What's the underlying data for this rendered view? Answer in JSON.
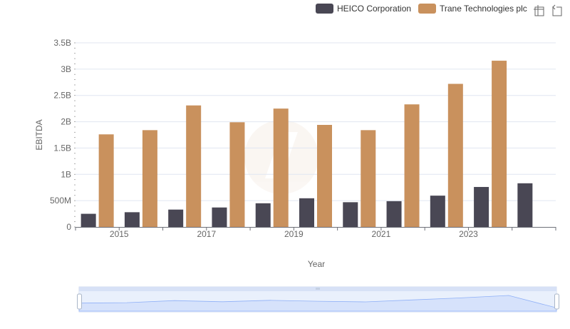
{
  "toolbar": {
    "icons": [
      "zoom-area-icon",
      "restore-icon"
    ]
  },
  "colors": {
    "heico": "#494754",
    "trane": "#c9915d",
    "grid": "#e0e6f1",
    "axis": "#6e7079",
    "zoom_fill": "#d6e2fb",
    "zoom_line": "#8fb0f7"
  },
  "chart_data": {
    "type": "bar",
    "title": "",
    "xlabel": "Year",
    "ylabel": "EBITDA",
    "categories": [
      "2014",
      "2015",
      "2016",
      "2017",
      "2018",
      "2019",
      "2020",
      "2021",
      "2022",
      "2023",
      "2024"
    ],
    "x_tick_labels": [
      "2015",
      "2017",
      "2019",
      "2021",
      "2023"
    ],
    "y_ticks": [
      {
        "value": 0,
        "label": "0"
      },
      {
        "value": 500000000,
        "label": "500M"
      },
      {
        "value": 1000000000,
        "label": "1B"
      },
      {
        "value": 1500000000,
        "label": "1.5B"
      },
      {
        "value": 2000000000,
        "label": "2B"
      },
      {
        "value": 2500000000,
        "label": "2.5B"
      },
      {
        "value": 3000000000,
        "label": "3B"
      },
      {
        "value": 3500000000,
        "label": "3.5B"
      }
    ],
    "ylim": [
      0,
      3500000000
    ],
    "legend_position": "top-right",
    "grid": true,
    "series": [
      {
        "name": "HEICO Corporation",
        "values": [
          250000000,
          280000000,
          330000000,
          370000000,
          450000000,
          545000000,
          470000000,
          490000000,
          595000000,
          760000000,
          830000000
        ]
      },
      {
        "name": "Trane Technologies plc",
        "values": [
          1760000000,
          1840000000,
          2310000000,
          1990000000,
          2250000000,
          1940000000,
          1840000000,
          2330000000,
          2720000000,
          3160000000,
          null
        ]
      }
    ]
  }
}
